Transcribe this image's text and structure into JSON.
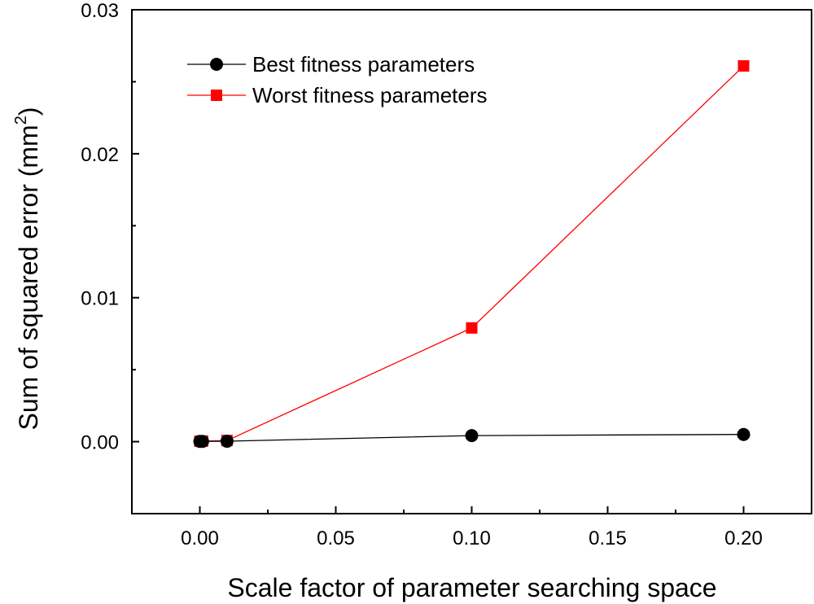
{
  "chart_data": {
    "type": "line",
    "xlabel": "Scale factor of parameter searching space",
    "ylabel": {
      "main": "Sum of squared error (mm",
      "superscript": "2",
      "close": ")"
    },
    "xlim": [
      -0.025,
      0.225
    ],
    "ylim": [
      -0.005,
      0.03
    ],
    "x_ticks": [
      0.0,
      0.05,
      0.1,
      0.15,
      0.2
    ],
    "x_tick_labels": [
      "0.00",
      "0.05",
      "0.10",
      "0.15",
      "0.20"
    ],
    "x_minor_ticks": [
      -0.025,
      0.025,
      0.075,
      0.125,
      0.175,
      0.225
    ],
    "y_ticks": [
      0.0,
      0.01,
      0.02,
      0.03
    ],
    "y_tick_labels": [
      "0.00",
      "0.01",
      "0.02",
      "0.03"
    ],
    "y_minor_ticks": [
      -0.005,
      0.005,
      0.015,
      0.025
    ],
    "grid": false,
    "legend_position": "top-left",
    "series": [
      {
        "name": "Best fitness parameters",
        "color": "#000000",
        "marker": "circle",
        "x": [
          0.0,
          0.001,
          0.01,
          0.1,
          0.2
        ],
        "y": [
          2e-05,
          2e-05,
          3e-05,
          0.00042,
          0.0005
        ]
      },
      {
        "name": "Worst fitness parameters",
        "color": "#ff0000",
        "marker": "square",
        "x": [
          0.0,
          0.001,
          0.01,
          0.1,
          0.2
        ],
        "y": [
          3e-05,
          4e-05,
          8e-05,
          0.0079,
          0.0261
        ]
      }
    ]
  }
}
